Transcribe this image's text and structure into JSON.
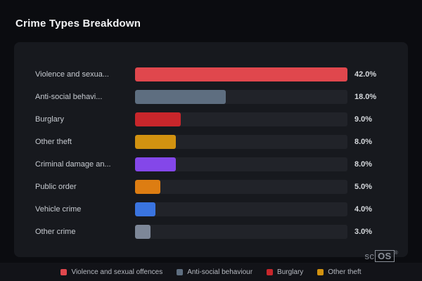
{
  "page": {
    "title": "Crime Types Breakdown"
  },
  "chart_data": {
    "type": "bar",
    "orientation": "horizontal",
    "title": "Crime Types Breakdown",
    "categories": [
      "Violence and sexua...",
      "Anti-social behavi...",
      "Burglary",
      "Other theft",
      "Criminal damage an...",
      "Public order",
      "Vehicle crime",
      "Other crime"
    ],
    "values": [
      42.0,
      18.0,
      9.0,
      8.0,
      8.0,
      5.0,
      4.0,
      3.0
    ],
    "value_labels": [
      "42.0%",
      "18.0%",
      "9.0%",
      "8.0%",
      "8.0%",
      "5.0%",
      "4.0%",
      "3.0%"
    ],
    "bar_colors": [
      "#e0474d",
      "#5e6e80",
      "#c8262b",
      "#d29210",
      "#8447e9",
      "#dd7d12",
      "#3a74e0",
      "#7d8798"
    ],
    "max_value": 42.0,
    "xlabel": "",
    "ylabel": "",
    "grid": false,
    "legend_position": "bottom"
  },
  "legend": {
    "items": [
      {
        "label": "Violence and sexual offences",
        "color": "#e0474d"
      },
      {
        "label": "Anti-social behaviour",
        "color": "#5e6e80"
      },
      {
        "label": "Burglary",
        "color": "#c8262b"
      },
      {
        "label": "Other theft",
        "color": "#d29210"
      }
    ]
  },
  "branding": {
    "prefix": "sc",
    "suffix": "OS",
    "registered": "®"
  }
}
